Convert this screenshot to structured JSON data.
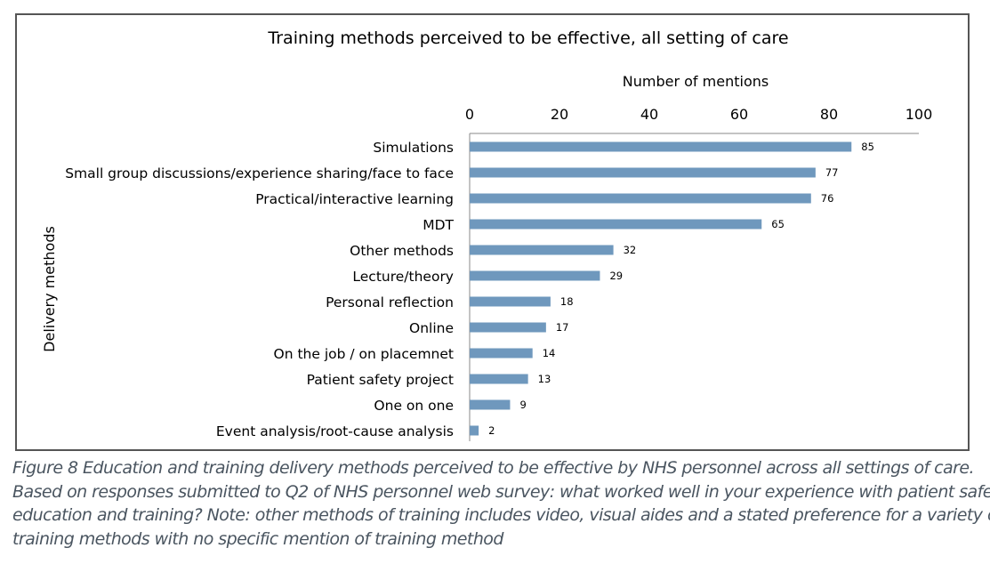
{
  "chart_data": {
    "type": "bar",
    "orientation": "horizontal",
    "title": "Training methods perceived to be effective, all setting of care",
    "xlabel": "Number of mentions",
    "ylabel": "Delivery methods",
    "xlim": [
      0,
      100
    ],
    "xticks": [
      0,
      20,
      40,
      60,
      80,
      100
    ],
    "categories": [
      "Simulations",
      "Small group discussions/experience sharing/face to face",
      "Practical/interactive learning",
      "MDT",
      "Other methods",
      "Lecture/theory",
      "Personal reflection",
      "Online",
      "On the job / on placemnet",
      "Patient safety project",
      "One on one",
      "Event analysis/root-cause analysis"
    ],
    "values": [
      85,
      77,
      76,
      65,
      32,
      29,
      18,
      17,
      14,
      13,
      9,
      2
    ],
    "bar_color": "#6f98bd",
    "grid": false
  },
  "caption": [
    "Figure 8 Education and training delivery methods perceived to be effective by NHS personnel across all settings of care.",
    "Based on responses submitted to Q2 of NHS personnel web survey: what worked well in your experience with patient safety",
    "education and training? Note: other methods of training includes video, visual aides and a stated preference for a variety of",
    "training methods with no specific mention of training method"
  ]
}
